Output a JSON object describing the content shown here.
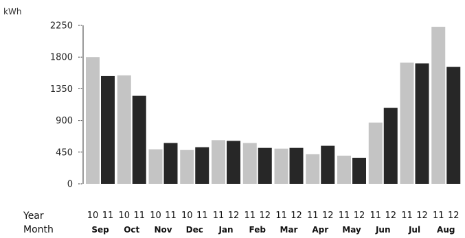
{
  "chart_data": {
    "type": "bar",
    "ylabel": "kWh",
    "ylim": [
      0,
      2250
    ],
    "yticks": [
      "0",
      "450",
      "900",
      "1350",
      "1800",
      "2250"
    ],
    "grid": false,
    "row_titles": {
      "year": "Year",
      "month": "Month"
    },
    "categories": [
      "Sep",
      "Oct",
      "Nov",
      "Dec",
      "Jan",
      "Feb",
      "Mar",
      "Apr",
      "May",
      "Jun",
      "Jul",
      "Aug"
    ],
    "bar_colors": [
      "#c4c4c4",
      "#272727"
    ],
    "groups": [
      {
        "month": "Sep",
        "bars": [
          {
            "year": "10",
            "value": 1800
          },
          {
            "year": "11",
            "value": 1530
          }
        ]
      },
      {
        "month": "Oct",
        "bars": [
          {
            "year": "10",
            "value": 1540
          },
          {
            "year": "11",
            "value": 1250
          }
        ]
      },
      {
        "month": "Nov",
        "bars": [
          {
            "year": "10",
            "value": 490
          },
          {
            "year": "11",
            "value": 580
          }
        ]
      },
      {
        "month": "Dec",
        "bars": [
          {
            "year": "10",
            "value": 480
          },
          {
            "year": "11",
            "value": 520
          }
        ]
      },
      {
        "month": "Jan",
        "bars": [
          {
            "year": "11",
            "value": 620
          },
          {
            "year": "12",
            "value": 610
          }
        ]
      },
      {
        "month": "Feb",
        "bars": [
          {
            "year": "11",
            "value": 580
          },
          {
            "year": "12",
            "value": 510
          }
        ]
      },
      {
        "month": "Mar",
        "bars": [
          {
            "year": "11",
            "value": 500
          },
          {
            "year": "12",
            "value": 510
          }
        ]
      },
      {
        "month": "Apr",
        "bars": [
          {
            "year": "11",
            "value": 420
          },
          {
            "year": "12",
            "value": 540
          }
        ]
      },
      {
        "month": "May",
        "bars": [
          {
            "year": "11",
            "value": 400
          },
          {
            "year": "12",
            "value": 370
          }
        ]
      },
      {
        "month": "Jun",
        "bars": [
          {
            "year": "11",
            "value": 870
          },
          {
            "year": "12",
            "value": 1080
          }
        ]
      },
      {
        "month": "Jul",
        "bars": [
          {
            "year": "11",
            "value": 1720
          },
          {
            "year": "12",
            "value": 1710
          }
        ]
      },
      {
        "month": "Aug",
        "bars": [
          {
            "year": "11",
            "value": 2230
          },
          {
            "year": "12",
            "value": 1660
          }
        ]
      }
    ]
  }
}
